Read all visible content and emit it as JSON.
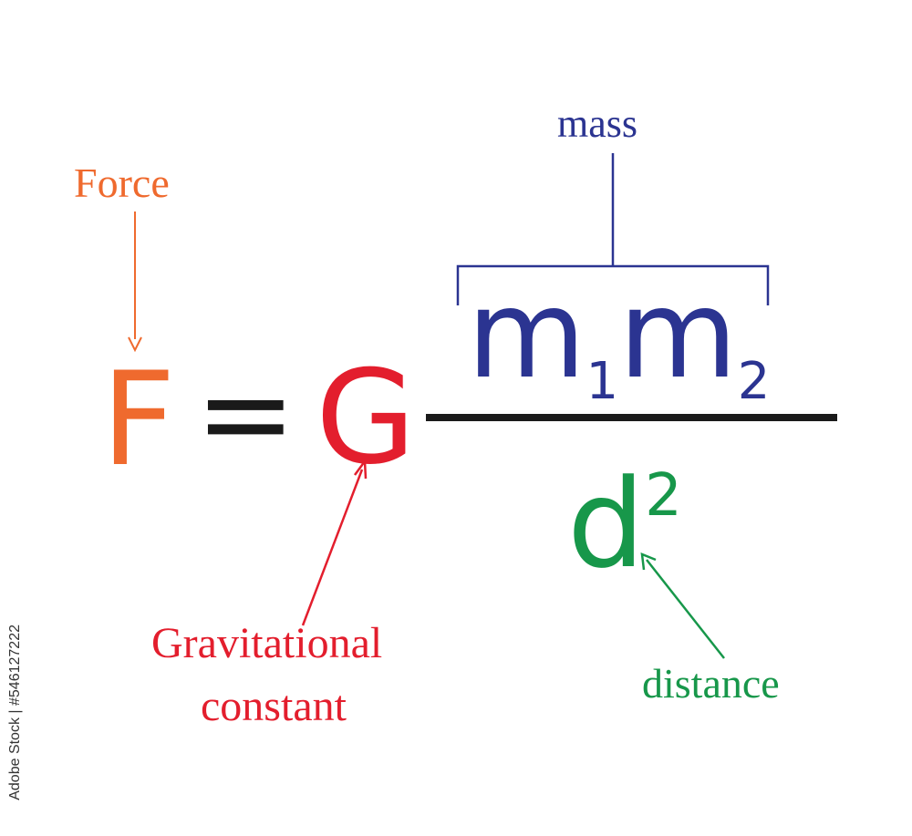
{
  "labels": {
    "force": "Force",
    "mass": "mass",
    "gravitational_line1": "Gravitational",
    "gravitational_line2": "constant",
    "distance": "distance"
  },
  "formula": {
    "F": "F",
    "equals": "=",
    "G": "G",
    "m": "m",
    "sub1": "1",
    "sub2": "2",
    "d": "d",
    "sup2": "2"
  },
  "watermark": "Adobe Stock | #546127222",
  "colors": {
    "force": "#ef6a2e",
    "mass": "#2b3491",
    "gravitational": "#e31e2d",
    "distance": "#17974a",
    "fraction_bar": "#1a1a1a",
    "equals": "#1a1a1a"
  }
}
